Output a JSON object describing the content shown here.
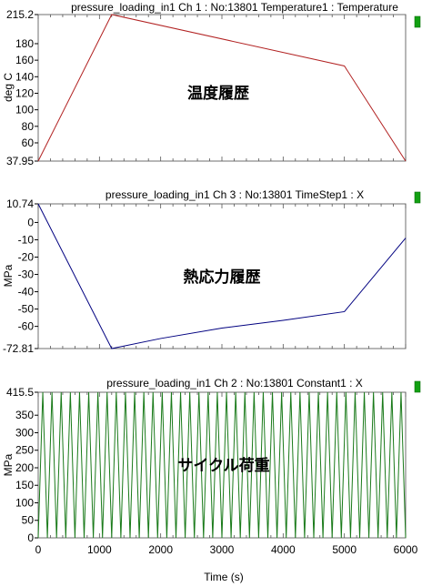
{
  "chart_data": [
    {
      "type": "line",
      "title": "pressure_loading_in1  Ch 1 : No:13801  Temperature1 : Temperature",
      "ylabel": "deg C",
      "annotation": "温度履歴",
      "ylim": [
        37.95,
        215.2
      ],
      "xlim": [
        0,
        6000
      ],
      "yticks": [
        {
          "v": 215.2,
          "label": "215.2"
        },
        {
          "v": 180,
          "label": "180"
        },
        {
          "v": 160,
          "label": "160"
        },
        {
          "v": 140,
          "label": "140"
        },
        {
          "v": 120,
          "label": "120"
        },
        {
          "v": 100,
          "label": "100"
        },
        {
          "v": 80,
          "label": "80"
        },
        {
          "v": 60,
          "label": "60"
        },
        {
          "v": 37.95,
          "label": "37.95"
        }
      ],
      "series": [
        {
          "color": "#b22222",
          "x": [
            0,
            1200,
            5000,
            6000
          ],
          "y": [
            37.95,
            215.2,
            153,
            37.95
          ]
        }
      ],
      "marker": "#12a012"
    },
    {
      "type": "line",
      "title": "pressure_loading_in1  Ch 3 : No:13801  TimeStep1 : X",
      "ylabel": "MPa",
      "annotation": "熱応力履歴",
      "ylim": [
        -72.81,
        10.74
      ],
      "xlim": [
        0,
        6000
      ],
      "yticks": [
        {
          "v": 10.74,
          "label": "10.74"
        },
        {
          "v": 0,
          "label": "0"
        },
        {
          "v": -10,
          "label": "-10"
        },
        {
          "v": -20,
          "label": "-20"
        },
        {
          "v": -30,
          "label": "-30"
        },
        {
          "v": -40,
          "label": "-40"
        },
        {
          "v": -50,
          "label": "-50"
        },
        {
          "v": -60,
          "label": "-60"
        },
        {
          "v": -72.81,
          "label": "-72.81"
        }
      ],
      "series": [
        {
          "color": "#000080",
          "x": [
            0,
            1200,
            2000,
            3000,
            4000,
            5000,
            6000
          ],
          "y": [
            10.74,
            -72.81,
            -67,
            -61,
            -56.5,
            -51.5,
            -9
          ]
        }
      ],
      "marker": "#12a012"
    },
    {
      "type": "line",
      "title": "pressure_loading_in1  Ch 2 : No:13801  Constant1 : X",
      "ylabel": "MPa",
      "annotation": "サイクル荷重",
      "xlabel": "Time (s)",
      "ylim": [
        0,
        415.5
      ],
      "xlim": [
        0,
        6000
      ],
      "yticks": [
        {
          "v": 415.5,
          "label": "415.5"
        },
        {
          "v": 350,
          "label": "350"
        },
        {
          "v": 300,
          "label": "300"
        },
        {
          "v": 250,
          "label": "250"
        },
        {
          "v": 200,
          "label": "200"
        },
        {
          "v": 150,
          "label": "150"
        },
        {
          "v": 100,
          "label": "100"
        },
        {
          "v": 50,
          "label": "50"
        },
        {
          "v": 0,
          "label": "0"
        }
      ],
      "xticks": [
        {
          "v": 0,
          "label": "0"
        },
        {
          "v": 1000,
          "label": "1000"
        },
        {
          "v": 2000,
          "label": "2000"
        },
        {
          "v": 3000,
          "label": "3000"
        },
        {
          "v": 4000,
          "label": "4000"
        },
        {
          "v": 5000,
          "label": "5000"
        },
        {
          "v": 6000,
          "label": "6000"
        }
      ],
      "series": [
        {
          "color": "#1a7a1a",
          "wave": {
            "cycles": 40,
            "min": 0,
            "max": 415.5
          }
        }
      ],
      "marker": "#12a012"
    }
  ]
}
